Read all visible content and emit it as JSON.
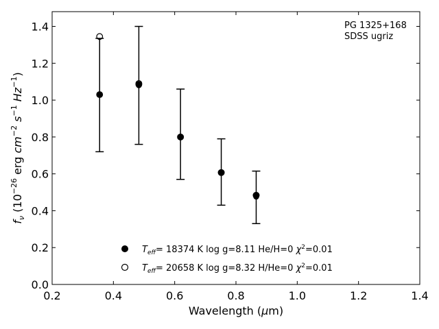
{
  "chart_data": {
    "type": "scatter",
    "title": "",
    "xlabel": "Wavelength (μm)",
    "ylabel": "f_ν (10^-26 erg cm^-2 s^-1 Hz^-1)",
    "xlim": [
      0.2,
      1.4
    ],
    "ylim": [
      0.0,
      1.48
    ],
    "xticks": [
      0.2,
      0.4,
      0.6,
      0.8,
      1.0,
      1.2,
      1.4
    ],
    "yticks": [
      0.0,
      0.2,
      0.4,
      0.6,
      0.8,
      1.0,
      1.2,
      1.4
    ],
    "xtick_labels": [
      "0.2",
      "0.4",
      "0.6",
      "0.8",
      "1.0",
      "1.2",
      "1.4"
    ],
    "ytick_labels": [
      "0.0",
      "0.2",
      "0.4",
      "0.6",
      "0.8",
      "1.0",
      "1.2",
      "1.4"
    ],
    "grid": false,
    "annotation": {
      "line1": "PG 1325+168",
      "line2": "SDSS ugriz"
    },
    "observed": {
      "name": "",
      "x": [
        0.355,
        0.483,
        0.619,
        0.752,
        0.866
      ],
      "y": [
        1.03,
        1.08,
        0.8,
        0.607,
        0.476
      ],
      "err_low": [
        0.72,
        0.76,
        0.57,
        0.43,
        0.33
      ],
      "err_high": [
        1.335,
        1.4,
        1.06,
        0.79,
        0.615
      ]
    },
    "series": [
      {
        "name": "T_eff= 18374 K  log g=8.11  He/H=0  χ²=0.01",
        "marker": "filled-circle",
        "x": [
          0.355,
          0.483,
          0.619,
          0.752,
          0.866
        ],
        "y": [
          1.03,
          1.085,
          0.8,
          0.607,
          0.484
        ]
      },
      {
        "name": "T_eff= 20658 K  log g=8.32  H/He=0  χ²=0.01",
        "marker": "open-circle",
        "x": [
          0.355,
          0.483,
          0.619,
          0.752,
          0.866
        ],
        "y": [
          1.345,
          1.09,
          0.8,
          0.607,
          0.484
        ]
      }
    ],
    "legend_placement": "lower-center",
    "legend": [
      {
        "teff_label": "T",
        "teff_sub": "eff",
        "text": "= 18374 K  log g=8.11  He/H=0  ",
        "chi": "χ",
        "chi_sup": "2",
        "chi_val": "=0.01"
      },
      {
        "teff_label": "T",
        "teff_sub": "eff",
        "text": "= 20658 K  log g=8.32  H/He=0  ",
        "chi": "χ",
        "chi_sup": "2",
        "chi_val": "=0.01"
      }
    ],
    "xlabel_parts": {
      "pre": "Wavelength (",
      "mu": "μ",
      "post": "m)"
    },
    "ylabel_parts": {
      "f": "f",
      "nu": "ν",
      "open": " (10",
      "e1": "−26",
      "erg": " erg ",
      "cm": "cm",
      "e2": "−2",
      "s": " s",
      "e3": "−1",
      "hz": " Hz",
      "e4": "−1",
      "close": ")"
    }
  },
  "colors": {
    "axes": "#000000",
    "marker": "#000000",
    "background": "#ffffff"
  }
}
